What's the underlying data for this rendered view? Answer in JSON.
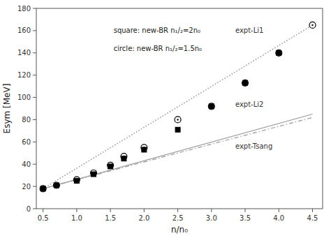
{
  "chart_data": {
    "type": "line",
    "x_label": "n/n₀",
    "y_label": "Esym [MeV]",
    "xlim": [
      0.4,
      4.65
    ],
    "ylim": [
      0,
      180
    ],
    "xticks": [
      0.5,
      {
        "value": 1.0,
        "label": "1.0"
      },
      1.5,
      {
        "value": 2.0,
        "label": "2.0"
      },
      2.5,
      {
        "value": 3.0,
        "label": "3.0"
      },
      3.5,
      {
        "value": 4.0,
        "label": "4.0"
      },
      4.5
    ],
    "yticks": [
      0,
      20,
      40,
      60,
      80,
      100,
      120,
      140,
      160,
      180
    ],
    "grid": false,
    "annotations": [
      "square: new-BR n₁/₂=2n₀",
      "circle: new-BR n₁/₂=1.5n₀"
    ],
    "series": [
      {
        "name": "expt-Li1",
        "type": "line",
        "line_style": "dotted",
        "color": "#999999",
        "x": [
          0.5,
          4.5
        ],
        "values": [
          18,
          165
        ]
      },
      {
        "name": "expt-Li2",
        "type": "line",
        "line_style": "solid",
        "color": "#999999",
        "x": [
          0.5,
          4.5
        ],
        "values": [
          18,
          85
        ]
      },
      {
        "name": "expt-Tsang",
        "type": "line",
        "line_style": "dashdot",
        "color": "#999999",
        "x": [
          0.5,
          4.5
        ],
        "values": [
          18,
          82
        ]
      },
      {
        "type": "scatter",
        "marker": "circle",
        "color": "#000000",
        "x": [
          0.5,
          0.7,
          1.0,
          1.25,
          1.5,
          1.7,
          2.0,
          2.5,
          3.0,
          3.5,
          4.0,
          4.5
        ],
        "values": [
          18,
          21,
          26,
          32,
          39,
          47,
          55,
          80,
          92,
          113,
          140,
          165
        ]
      },
      {
        "type": "scatter",
        "marker": "square",
        "color": "#000000",
        "x": [
          0.5,
          0.7,
          1.0,
          1.25,
          1.5,
          1.7,
          2.0,
          2.5,
          3.0,
          3.5,
          4.0
        ],
        "values": [
          18,
          21,
          25,
          31,
          38,
          45,
          53,
          71,
          92,
          113,
          140
        ]
      }
    ]
  }
}
